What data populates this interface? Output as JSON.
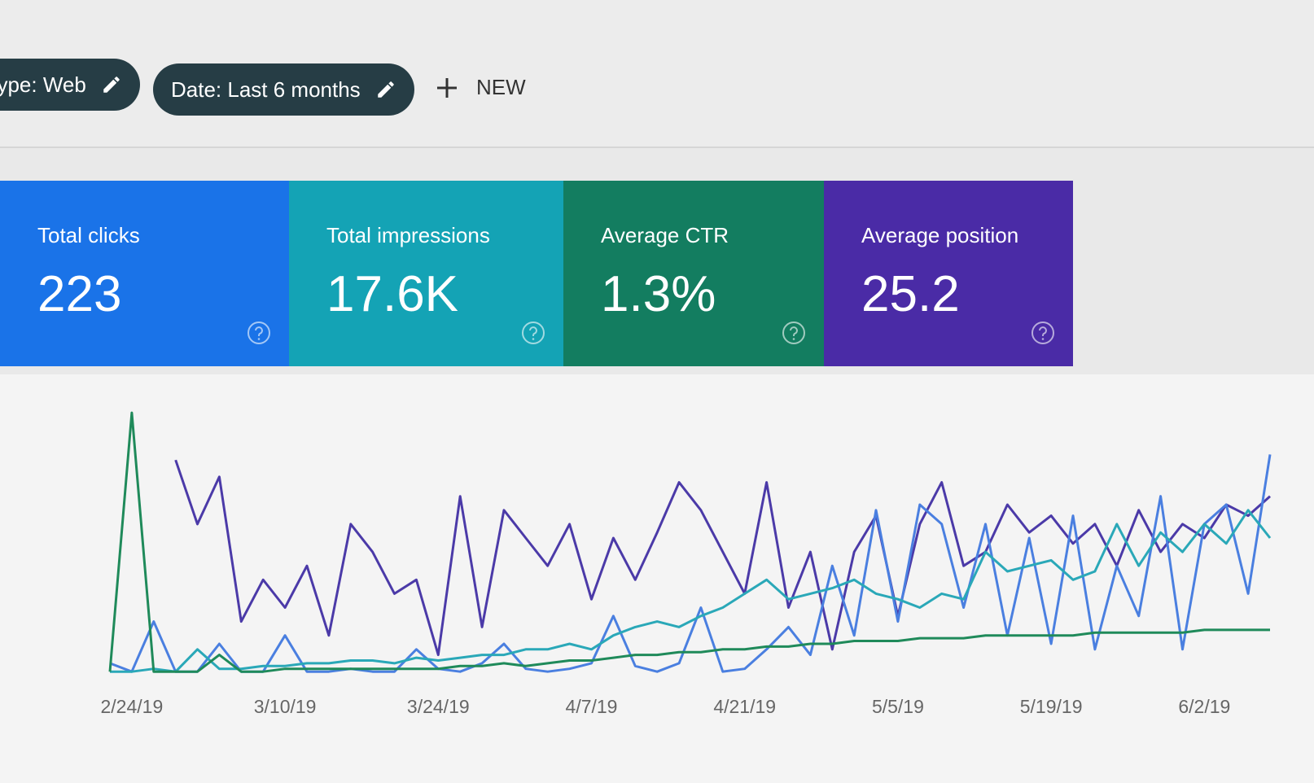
{
  "filters": [
    "Type: Web",
    "Date: Last 6 months"
  ],
  "new_button": "NEW",
  "metrics": [
    {
      "label": "Total clicks",
      "value": "223",
      "color": "#1a73e8"
    },
    {
      "label": "Total impressions",
      "value": "17.6K",
      "color": "#14a3b5"
    },
    {
      "label": "Average CTR",
      "value": "1.3%",
      "color": "#137d60"
    },
    {
      "label": "Average position",
      "value": "25.2",
      "color": "#4a2ba6"
    }
  ],
  "chart_data": {
    "type": "line",
    "xticks": [
      "2/24/19",
      "3/10/19",
      "3/24/19",
      "4/7/19",
      "4/21/19",
      "5/5/19",
      "5/19/19",
      "6/2/19"
    ],
    "ylim": [
      0,
      100
    ],
    "series": [
      {
        "color": "#4b3aa8",
        "values": [
          null,
          null,
          null,
          78,
          55,
          72,
          20,
          35,
          25,
          40,
          15,
          55,
          45,
          30,
          35,
          8,
          65,
          18,
          60,
          50,
          40,
          55,
          28,
          50,
          35,
          52,
          70,
          60,
          45,
          30,
          70,
          25,
          45,
          10,
          45,
          58,
          22,
          55,
          70,
          40,
          45,
          62,
          52,
          58,
          48,
          55,
          40,
          60,
          45,
          55,
          50,
          62,
          58,
          65
        ]
      },
      {
        "color": "#4a7fe0",
        "values": [
          5,
          2,
          20,
          2,
          2,
          12,
          2,
          2,
          15,
          2,
          2,
          3,
          2,
          2,
          10,
          3,
          2,
          5,
          12,
          3,
          2,
          3,
          5,
          22,
          4,
          2,
          5,
          25,
          2,
          3,
          10,
          18,
          8,
          40,
          15,
          60,
          20,
          62,
          55,
          25,
          55,
          15,
          50,
          12,
          58,
          10,
          40,
          22,
          65,
          10,
          55,
          62,
          30,
          80
        ]
      },
      {
        "color": "#2aa8b8",
        "values": [
          2,
          2,
          3,
          2,
          10,
          3,
          3,
          4,
          4,
          5,
          5,
          6,
          6,
          5,
          7,
          6,
          7,
          8,
          8,
          10,
          10,
          12,
          10,
          15,
          18,
          20,
          18,
          22,
          25,
          30,
          35,
          28,
          30,
          32,
          35,
          30,
          28,
          25,
          30,
          28,
          45,
          38,
          40,
          42,
          35,
          38,
          55,
          40,
          52,
          45,
          55,
          48,
          60,
          50
        ]
      },
      {
        "color": "#1f8a5a",
        "values": [
          2,
          95,
          2,
          2,
          2,
          8,
          2,
          2,
          3,
          3,
          3,
          3,
          3,
          3,
          3,
          3,
          4,
          4,
          5,
          4,
          5,
          6,
          6,
          7,
          8,
          8,
          9,
          9,
          10,
          10,
          11,
          11,
          12,
          12,
          13,
          13,
          13,
          14,
          14,
          14,
          15,
          15,
          15,
          15,
          15,
          16,
          16,
          16,
          16,
          16,
          17,
          17,
          17,
          17
        ]
      }
    ]
  }
}
